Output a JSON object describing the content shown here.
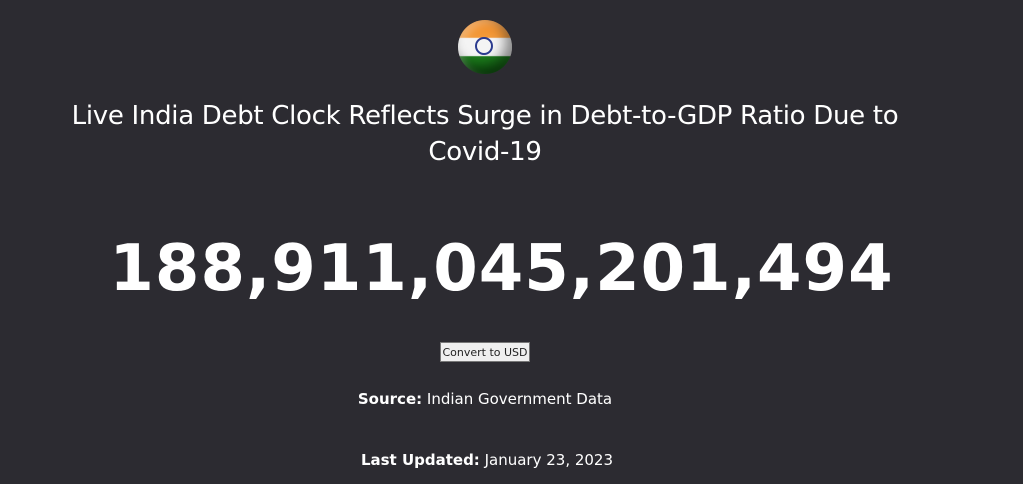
{
  "flag": {
    "icon": "india-flag-icon",
    "colors": {
      "saffron": "#f08a24",
      "white": "#f4f4f4",
      "green": "#1c7a1c",
      "chakra": "#2b3b8f"
    }
  },
  "title": "Live India Debt Clock Reflects Surge in Debt-to-GDP Ratio Due to Covid-19",
  "debt_value": "188,911,045,201,494",
  "convert_button": "Convert to USD",
  "source": {
    "label": "Source:",
    "value": "Indian Government Data"
  },
  "last_updated": {
    "label": "Last Updated:",
    "value": "January 23, 2023"
  },
  "colors": {
    "background": "#2c2b31",
    "text": "#ffffff"
  }
}
